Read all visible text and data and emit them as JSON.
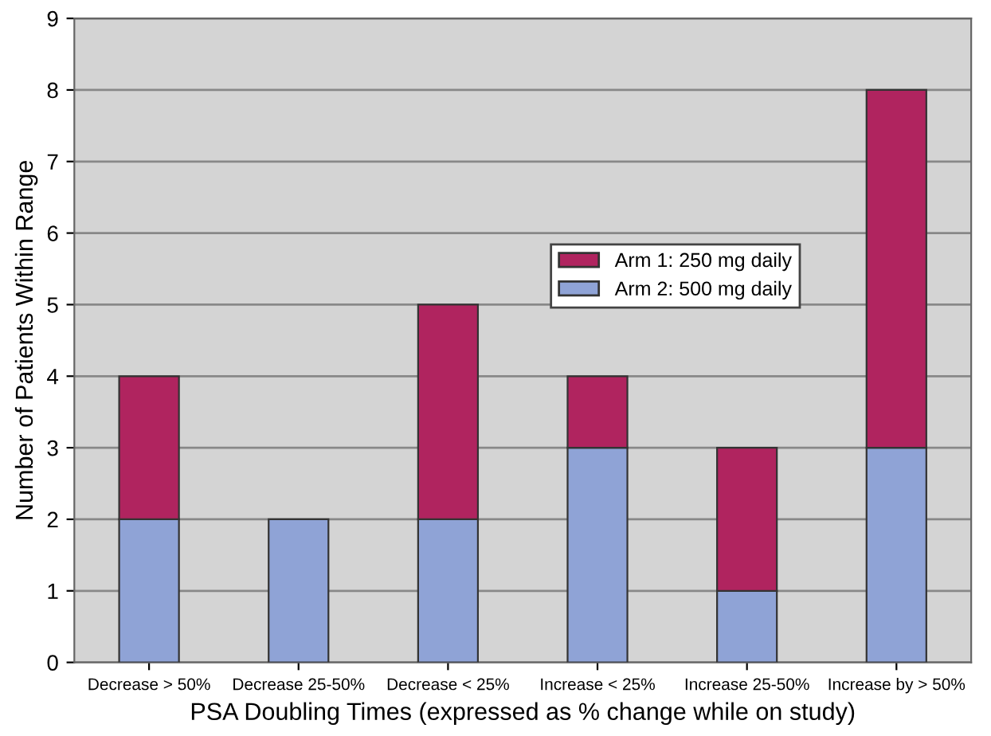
{
  "chart_data": {
    "type": "bar",
    "stacked": true,
    "xlabel": "PSA Doubling Times (expressed as % change while on study)",
    "ylabel": "Number of Patients Within Range",
    "categories": [
      "Decrease > 50%",
      "Decrease 25-50%",
      "Decrease < 25%",
      "Increase < 25%",
      "Increase 25-50%",
      "Increase by > 50%"
    ],
    "series": [
      {
        "name": "Arm 2: 500 mg daily",
        "color": "#8fa3d6",
        "values": [
          2,
          2,
          2,
          3,
          1,
          3
        ]
      },
      {
        "name": "Arm 1: 250 mg daily",
        "color": "#b0245f",
        "values": [
          2,
          0,
          3,
          1,
          2,
          5
        ]
      }
    ],
    "ylim": [
      0,
      9
    ],
    "yticks": [
      0,
      1,
      2,
      3,
      4,
      5,
      6,
      7,
      8,
      9
    ],
    "grid": "y",
    "legend": "right"
  }
}
